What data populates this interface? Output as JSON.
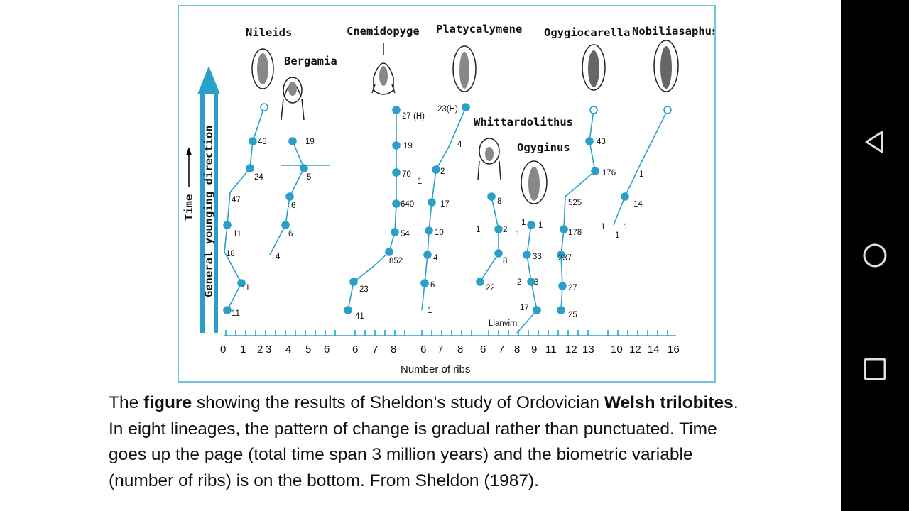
{
  "figure": {
    "genera": [
      "Nileids",
      "Bergamia",
      "Cnemidopyge",
      "Platycalymene",
      "Whittardolithus",
      "Ogyginus",
      "Ogygiocarella",
      "Nobiliasaphus"
    ],
    "time_label": "Time",
    "direction_label": "General younging direction",
    "xlabel": "Number of ribs",
    "llanvirn_label": "Llanvirn",
    "axis_ticks": [
      "0",
      "1",
      "2",
      "3",
      "4",
      "5",
      "6",
      "6",
      "7",
      "8",
      "6",
      "7",
      "8",
      "6",
      "7",
      "8",
      "9",
      "11",
      "12",
      "13",
      "10",
      "12",
      "14",
      "16"
    ],
    "counts": {
      "nileids": [
        "43",
        "24",
        "47",
        "11",
        "18",
        "11",
        "11"
      ],
      "bergamia": [
        "19",
        "5",
        "6",
        "6",
        "4"
      ],
      "cnemidopyge": [
        "27 (H)",
        "19",
        "70",
        "640",
        "54",
        "852",
        "23",
        "41"
      ],
      "platycalymene": [
        "23(H)",
        "4",
        "2",
        "1",
        "17",
        "10",
        "4",
        "6",
        "1"
      ],
      "whittardolithus": [
        "8",
        "1",
        "2",
        "8",
        "22"
      ],
      "ogyginus": [
        "1",
        "1",
        "1",
        "33",
        "2",
        "3",
        "17"
      ],
      "ogygiocarella": [
        "43",
        "176",
        "525",
        "178",
        "237",
        "27",
        "25"
      ],
      "nobiliasaphus": [
        "1",
        "14",
        "1",
        "1",
        "1"
      ]
    }
  },
  "caption": {
    "p1": "The ",
    "b1": "figure",
    "p2": " showing the results of Sheldon's study of Ordovician ",
    "b2": "Welsh trilobites",
    "p3": ". In eight lineages, the pattern of change is gradual rather than punctuated. Time goes up the page (total time span 3 million years) and the biometric variable (number of ribs) is on the bottom. From Sheldon (1987)."
  },
  "nav": {
    "back_icon": "back-triangle-icon",
    "home_icon": "home-circle-icon",
    "recents_icon": "recents-square-icon"
  },
  "colors": {
    "lineage": "#2a9fc9",
    "arrow": "#1f8ec4",
    "frame": "#6fc3dc",
    "navbar": "#000000"
  }
}
